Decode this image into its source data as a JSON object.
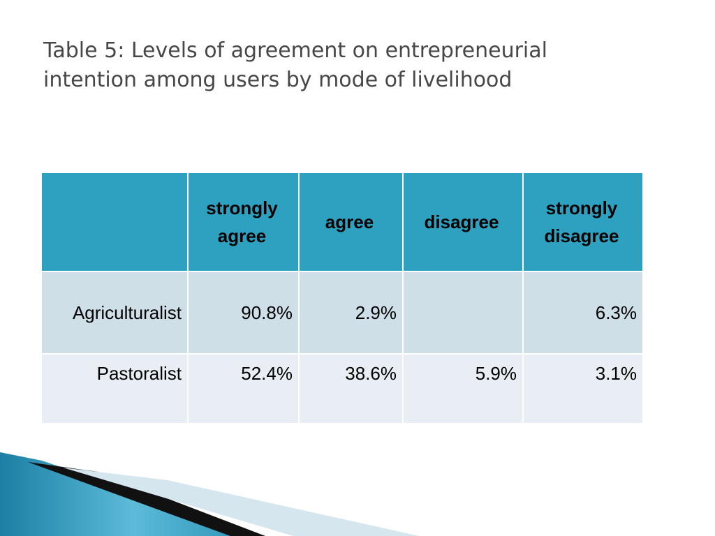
{
  "title": [
    "Table 5: Levels of agreement on entrepreneurial",
    "intention among users by mode of livelihood"
  ],
  "table": {
    "columns": [
      "strongly agree",
      "agree",
      "disagree",
      "strongly disagree"
    ],
    "rows": [
      [
        "Agriculturalist",
        "90.8%",
        "2.9%",
        null,
        "6.3%"
      ],
      [
        "Pastoralist",
        "52.4%",
        "38.6%",
        "5.9%",
        "3.1%"
      ]
    ]
  }
}
